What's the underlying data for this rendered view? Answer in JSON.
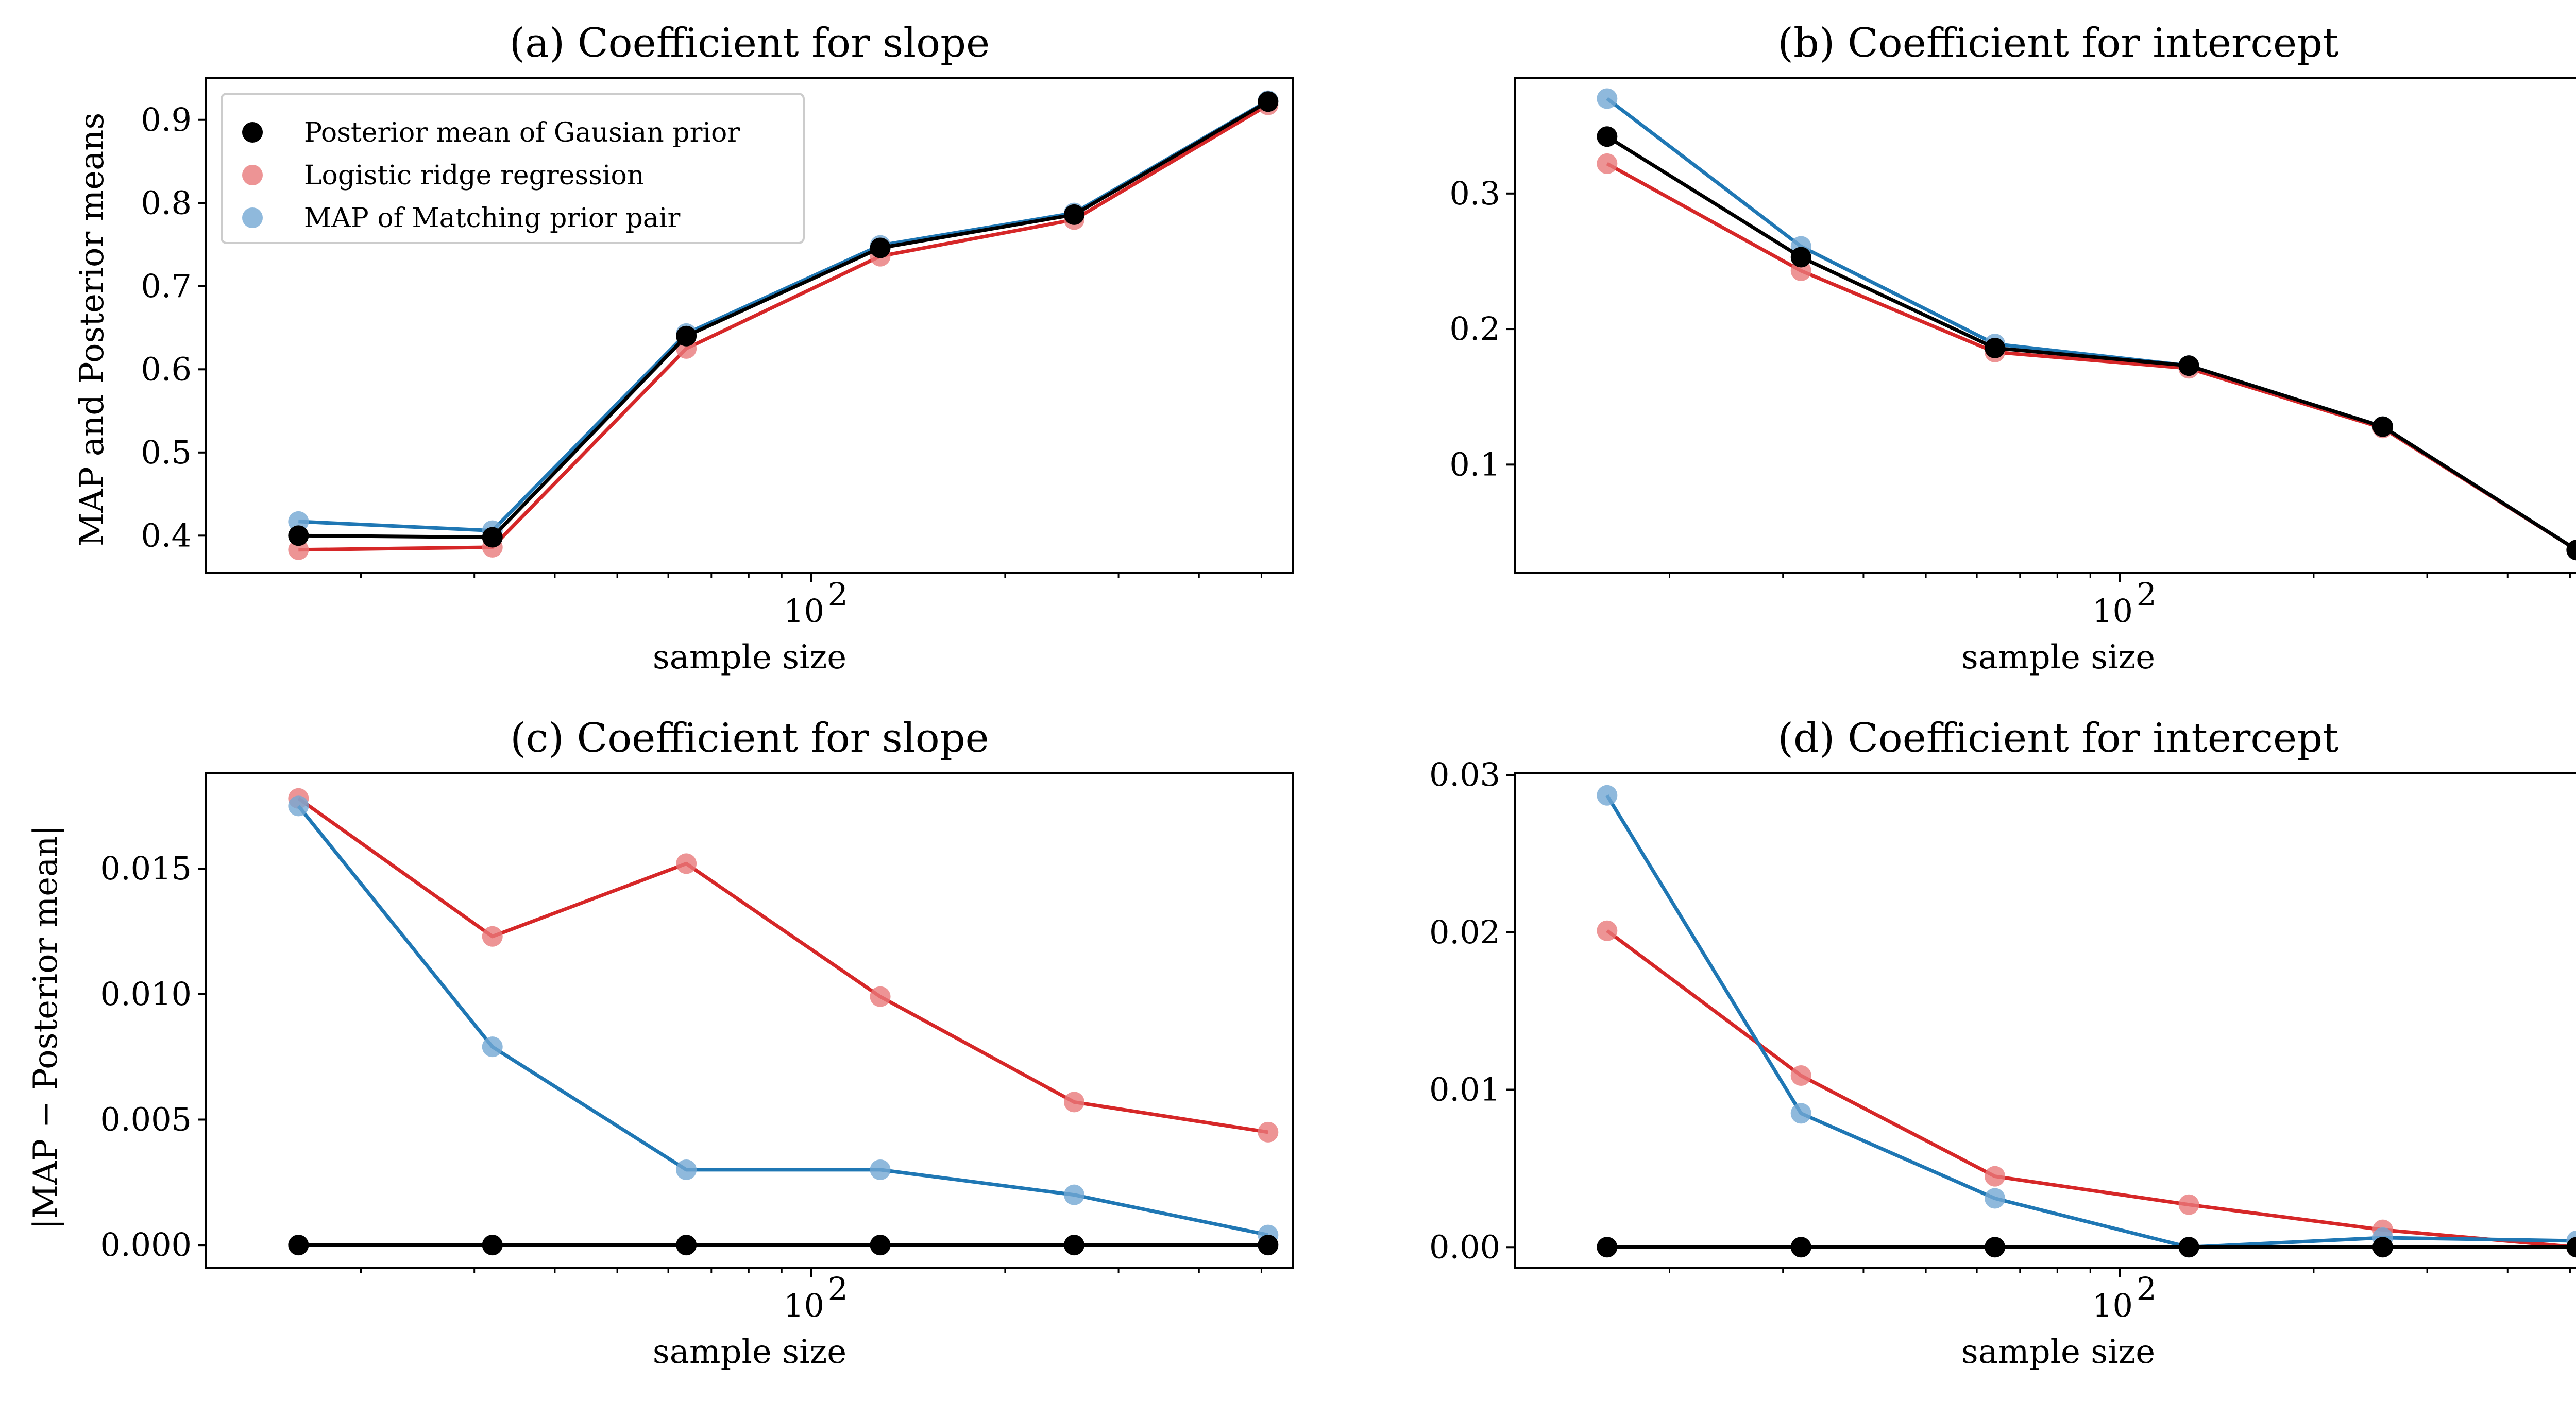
{
  "figure": {
    "y_label_top": "MAP and Posterior means",
    "y_label_bottom": "|MAP − Posterior mean|"
  },
  "colors": {
    "gaussian": "#000000",
    "ridge": "#d62728",
    "matching": "#1f77b4",
    "ridge_marker": "#e8797a",
    "matching_marker": "#73a8d3"
  },
  "chart_data": [
    {
      "type": "line",
      "title": "(a) Coefficient for slope",
      "xlabel": "sample size",
      "ylabel": "MAP and Posterior means",
      "xscale": "log",
      "xlim": [
        11.5,
        560
      ],
      "ylim": [
        0.355,
        0.95
      ],
      "yticks": [
        0.4,
        0.5,
        0.6,
        0.7,
        0.8,
        0.9
      ],
      "ytick_labels": [
        "0.4",
        "0.5",
        "0.6",
        "0.7",
        "0.8",
        "0.9"
      ],
      "xtick_label": "10",
      "xtick_exponent": "2",
      "x": [
        16,
        32,
        64,
        128,
        256,
        512
      ],
      "series": [
        {
          "name": "Posterior mean of Gausian prior",
          "key": "gaussian",
          "values": [
            0.4,
            0.398,
            0.64,
            0.746,
            0.786,
            0.922
          ]
        },
        {
          "name": "Logistic ridge regression",
          "key": "ridge",
          "values": [
            0.383,
            0.386,
            0.625,
            0.736,
            0.78,
            0.918
          ]
        },
        {
          "name": "MAP of Matching prior pair",
          "key": "matching",
          "values": [
            0.417,
            0.406,
            0.643,
            0.749,
            0.788,
            0.923
          ]
        }
      ],
      "legend": {
        "position": "upper-left",
        "entries": [
          "Posterior mean of Gausian prior",
          "Logistic ridge regression",
          "MAP of Matching prior pair"
        ]
      }
    },
    {
      "type": "line",
      "title": "(b) Coefficient for intercept",
      "xlabel": "sample size",
      "ylabel": "",
      "xscale": "log",
      "xlim": [
        11.5,
        560
      ],
      "ylim": [
        0.02,
        0.385
      ],
      "yticks": [
        0.1,
        0.2,
        0.3
      ],
      "ytick_labels": [
        "0.1",
        "0.2",
        "0.3"
      ],
      "xtick_label": "10",
      "xtick_exponent": "2",
      "x": [
        16,
        32,
        64,
        128,
        256,
        512
      ],
      "series": [
        {
          "name": "Posterior mean of Gausian prior",
          "key": "gaussian",
          "values": [
            0.342,
            0.253,
            0.186,
            0.173,
            0.128,
            0.037
          ]
        },
        {
          "name": "Logistic ridge regression",
          "key": "ridge",
          "values": [
            0.322,
            0.243,
            0.183,
            0.171,
            0.127,
            0.037
          ]
        },
        {
          "name": "MAP of Matching prior pair",
          "key": "matching",
          "values": [
            0.37,
            0.261,
            0.189,
            0.173,
            0.128,
            0.037
          ]
        }
      ]
    },
    {
      "type": "line",
      "title": "(c) Coefficient for slope",
      "xlabel": "sample size",
      "ylabel": "|MAP − Posterior mean|",
      "xscale": "log",
      "xlim": [
        11.5,
        560
      ],
      "ylim": [
        -0.0009,
        0.0188
      ],
      "yticks": [
        0.0,
        0.005,
        0.01,
        0.015
      ],
      "ytick_labels": [
        "0.000",
        "0.005",
        "0.010",
        "0.015"
      ],
      "xtick_label": "10",
      "xtick_exponent": "2",
      "x": [
        16,
        32,
        64,
        128,
        256,
        512
      ],
      "series": [
        {
          "name": "Posterior mean of Gausian prior",
          "key": "gaussian",
          "values": [
            0,
            0,
            0,
            0,
            0,
            0
          ]
        },
        {
          "name": "Logistic ridge regression",
          "key": "ridge",
          "values": [
            0.0178,
            0.0123,
            0.0152,
            0.0099,
            0.0057,
            0.0045
          ]
        },
        {
          "name": "MAP of Matching prior pair",
          "key": "matching",
          "values": [
            0.0175,
            0.0079,
            0.003,
            0.003,
            0.002,
            0.0004
          ]
        }
      ]
    },
    {
      "type": "line",
      "title": "(d) Coefficient for intercept",
      "xlabel": "sample size",
      "ylabel": "",
      "xscale": "log",
      "xlim": [
        11.5,
        560
      ],
      "ylim": [
        -0.0013,
        0.0301
      ],
      "yticks": [
        0.0,
        0.01,
        0.02,
        0.03
      ],
      "ytick_labels": [
        "0.00",
        "0.01",
        "0.02",
        "0.03"
      ],
      "xtick_label": "10",
      "xtick_exponent": "2",
      "x": [
        16,
        32,
        64,
        128,
        256,
        512
      ],
      "series": [
        {
          "name": "Posterior mean of Gausian prior",
          "key": "gaussian",
          "values": [
            0,
            0,
            0,
            0,
            0,
            0
          ]
        },
        {
          "name": "Logistic ridge regression",
          "key": "ridge",
          "values": [
            0.0201,
            0.0109,
            0.0045,
            0.0027,
            0.0011,
            0.0
          ]
        },
        {
          "name": "MAP of Matching prior pair",
          "key": "matching",
          "values": [
            0.0287,
            0.0085,
            0.0031,
            0.0,
            0.0006,
            0.0004
          ]
        }
      ]
    }
  ]
}
